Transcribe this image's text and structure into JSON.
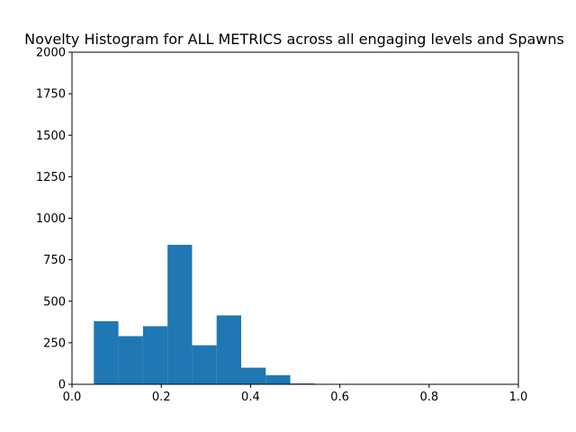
{
  "chart_data": {
    "type": "bar",
    "title": "Novelty Histogram for ALL METRICS across all engaging levels and Spawns",
    "xlabel": "",
    "ylabel": "",
    "xlim": [
      0.0,
      1.0
    ],
    "ylim": [
      0,
      2000
    ],
    "x_ticks": [
      "0.0",
      "0.2",
      "0.4",
      "0.6",
      "0.8",
      "1.0"
    ],
    "y_ticks": [
      "0",
      "250",
      "500",
      "750",
      "1000",
      "1250",
      "1500",
      "1750",
      "2000"
    ],
    "bins": [
      {
        "start": 0.049,
        "end": 0.104,
        "count": 380
      },
      {
        "start": 0.104,
        "end": 0.159,
        "count": 290
      },
      {
        "start": 0.159,
        "end": 0.214,
        "count": 350
      },
      {
        "start": 0.214,
        "end": 0.269,
        "count": 840
      },
      {
        "start": 0.269,
        "end": 0.324,
        "count": 235
      },
      {
        "start": 0.324,
        "end": 0.379,
        "count": 415
      },
      {
        "start": 0.379,
        "end": 0.434,
        "count": 100
      },
      {
        "start": 0.434,
        "end": 0.489,
        "count": 55
      },
      {
        "start": 0.489,
        "end": 0.544,
        "count": 5
      }
    ],
    "bar_color": "#1f77b4",
    "grid": false,
    "legend": "none"
  }
}
